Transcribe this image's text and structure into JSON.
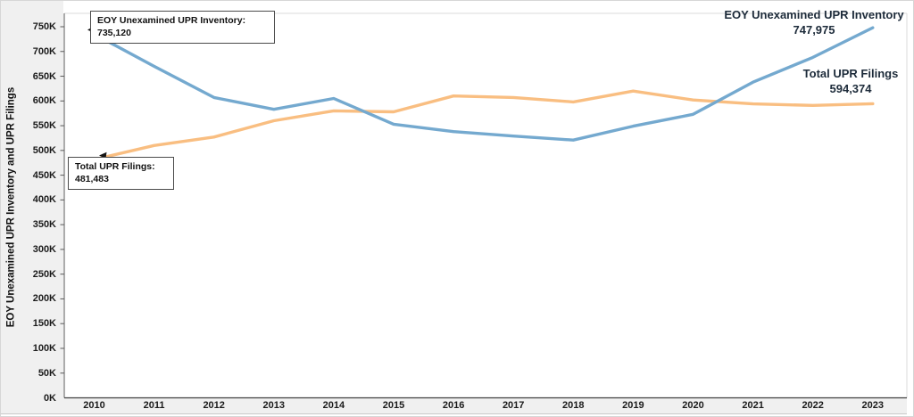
{
  "chart_data": {
    "type": "line",
    "title": "",
    "ylabel": "EOY Unexamined UPR Inventory and UPR Filings",
    "xlabel": "",
    "grid": false,
    "ylim": [
      0,
      750000
    ],
    "ytick_step": 50000,
    "ytick_labels": [
      "0K",
      "50K",
      "100K",
      "150K",
      "200K",
      "250K",
      "300K",
      "350K",
      "400K",
      "450K",
      "500K",
      "550K",
      "600K",
      "650K",
      "700K",
      "750K"
    ],
    "x_categories": [
      "2010",
      "2011",
      "2012",
      "2013",
      "2014",
      "2015",
      "2016",
      "2017",
      "2018",
      "2019",
      "2020",
      "2021",
      "2022",
      "2023"
    ],
    "series": [
      {
        "name": "EOY Unexamined UPR Inventory",
        "color": "#74A9CF",
        "values": [
          735120,
          670000,
          607000,
          583000,
          605000,
          553000,
          538000,
          529000,
          521000,
          549000,
          573000,
          638000,
          688000,
          747975
        ]
      },
      {
        "name": "Total UPR Filings",
        "color": "#F9BE81",
        "values": [
          481483,
          510000,
          527000,
          560000,
          580000,
          578000,
          610000,
          607000,
          598000,
          620000,
          602000,
          594000,
          591000,
          594374
        ]
      }
    ],
    "legend_position": "series-end-labels",
    "annotations": [
      {
        "target_series": "EOY Unexamined UPR Inventory",
        "target_x": "2010",
        "title": "EOY Unexamined UPR Inventory:",
        "value": "735,120"
      },
      {
        "target_series": "Total UPR Filings",
        "target_x": "2010",
        "title": "Total UPR Filings:",
        "value": "481,483"
      }
    ],
    "end_labels": [
      {
        "series": "EOY Unexamined UPR Inventory",
        "label": "EOY Unexamined UPR Inventory",
        "value_label": "747,975"
      },
      {
        "series": "Total UPR Filings",
        "label": "Total UPR Filings",
        "value_label": "594,374"
      }
    ]
  },
  "colors": {
    "inventory_line": "#74A9CF",
    "filings_line": "#F9BE81",
    "axis_strip_bg": "#F0F0F0",
    "axis_line": "#595959",
    "plot_frame": "#DBDBDB",
    "tick_text": "#1A1A1A",
    "end_label_text": "#1D2B3A",
    "callout_border": "#4A4A4A"
  }
}
